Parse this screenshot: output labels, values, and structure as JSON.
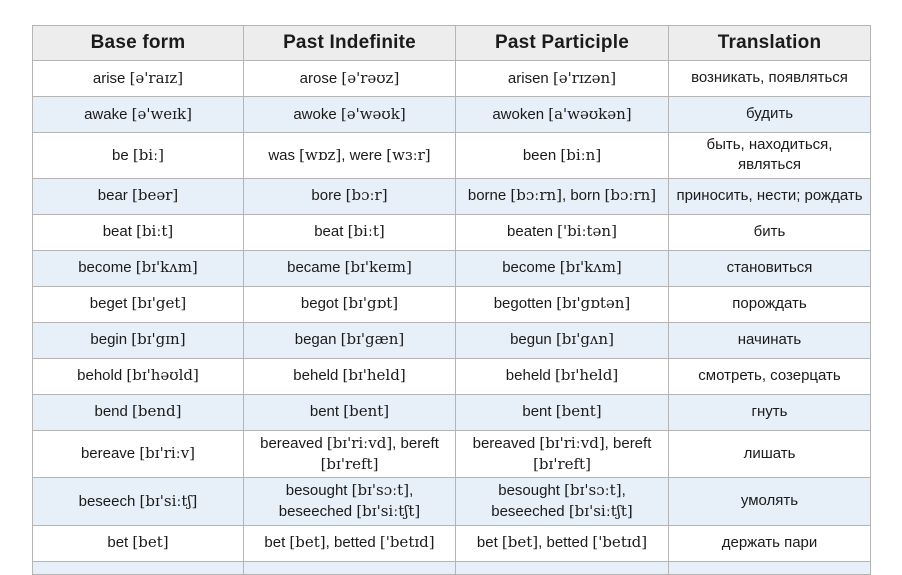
{
  "table": {
    "headers": [
      "Base form",
      "Past Indefinite",
      "Past Participle",
      "Translation"
    ],
    "rows": [
      [
        "arise [ə'raɪz]",
        "arose [ə'rəʊz]",
        "arisen [ə'rɪzən]",
        "возникать, появляться"
      ],
      [
        "awake [ə'weɪk]",
        "awoke [ə'wəʊk]",
        "awoken [a'wəʊkən]",
        "будить"
      ],
      [
        "be [biː]",
        "was [wɒz], were [wɜːr]",
        "been [biːn]",
        "быть, находиться, являться"
      ],
      [
        "bear [beər]",
        "bore [bɔːr]",
        "borne [bɔːrn], born [bɔːrn]",
        "приносить, нести; рождать"
      ],
      [
        "beat [biːt]",
        "beat [biːt]",
        "beaten ['biːtən]",
        "бить"
      ],
      [
        "become [bɪ'kʌm]",
        "became [bɪ'keɪm]",
        "become [bɪ'kʌm]",
        "становиться"
      ],
      [
        "beget [bɪ'get]",
        "begot [bɪ'gɒt]",
        "begotten [bɪ'gɒtən]",
        "порождать"
      ],
      [
        "begin [bɪ'gɪn]",
        "began [bɪ'gæn]",
        "begun [bɪ'gʌn]",
        "начинать"
      ],
      [
        "behold [bɪ'həʊld]",
        "beheld [bɪ'held]",
        "beheld [bɪ'held]",
        "смотреть, созерцать"
      ],
      [
        "bend [bend]",
        "bent [bent]",
        "bent [bent]",
        "гнуть"
      ],
      [
        "bereave [bɪ'riːv]",
        "bereaved [bɪ'riːvd], bereft [bɪ'reft]",
        "bereaved [bɪ'riːvd], bereft [bɪ'reft]",
        "лишать"
      ],
      [
        "beseech [bɪ'siːtʃ]",
        "besought [bɪ'sɔːt], beseeched [bɪ'siːtʃt]",
        "besought [bɪ'sɔːt], beseeched [bɪ'siːtʃt]",
        "умолять"
      ],
      [
        "bet [bet]",
        "bet [bet], betted ['betɪd]",
        "bet [bet], betted ['betɪd]",
        "держать пари"
      ]
    ]
  },
  "colors": {
    "header_bg": "#ededed",
    "row_alt_bg": "#e7eff8",
    "border": "#b5b5b5",
    "text": "#1b1b1b"
  }
}
